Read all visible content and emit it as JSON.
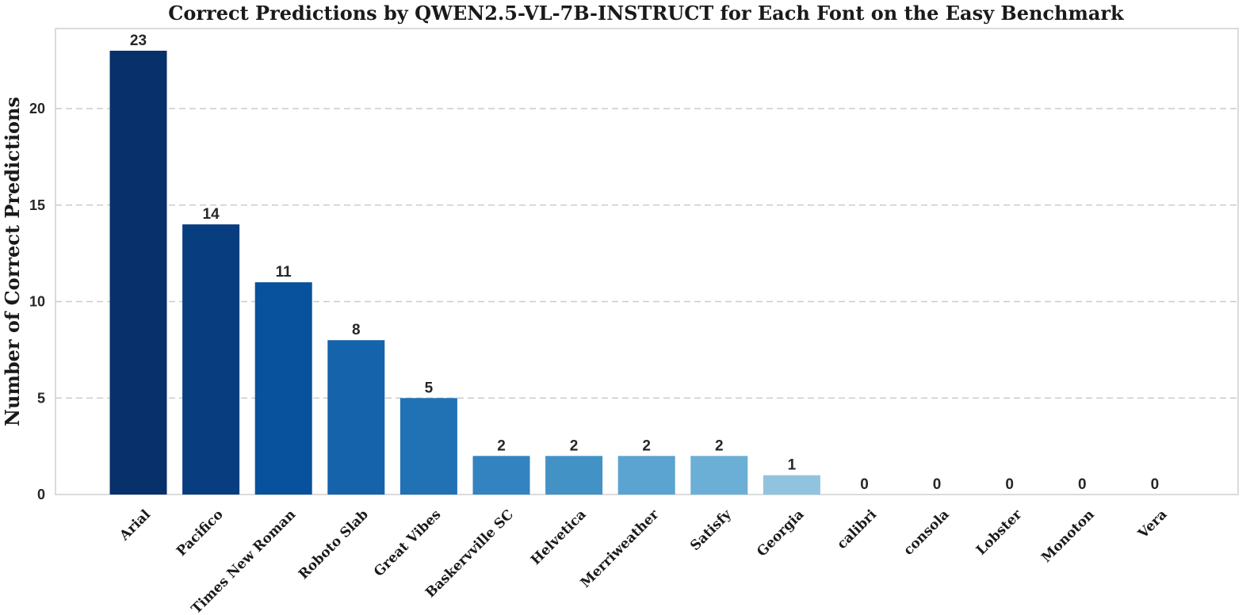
{
  "chart_data": {
    "type": "bar",
    "title": "Correct Predictions by QWEN2.5-VL-7B-INSTRUCT for Each Font on the Easy Benchmark",
    "xlabel": "",
    "ylabel": "Number of Correct Predictions",
    "categories": [
      "Arial",
      "Pacifico",
      "Times New Roman",
      "Roboto Slab",
      "Great Vibes",
      "Baskervville SC",
      "Helvetica",
      "Merriweather",
      "Satisfy",
      "Georgia",
      "calibri",
      "consola",
      "Lobster",
      "Monoton",
      "Vera"
    ],
    "values": [
      23,
      14,
      11,
      8,
      5,
      2,
      2,
      2,
      2,
      1,
      0,
      0,
      0,
      0,
      0
    ],
    "colors": [
      "#08306b",
      "#083d7f",
      "#08519c",
      "#1563aa",
      "#2171b5",
      "#3383c1",
      "#4292c6",
      "#5ba3d0",
      "#6baed6",
      "#91c3de",
      "#a9d0e6",
      "#c6dbef",
      "#d4e4f3",
      "#dbe9f6",
      "#e3eef8"
    ],
    "yticks": [
      0,
      5,
      10,
      15,
      20
    ],
    "ylim": [
      0,
      24.15
    ],
    "grid": true,
    "legend": "none"
  }
}
